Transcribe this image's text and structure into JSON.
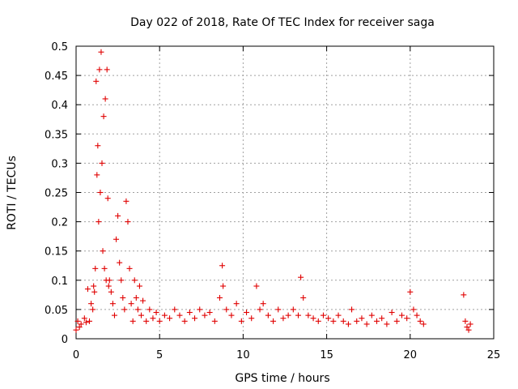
{
  "chart_data": {
    "type": "scatter",
    "title": "Day 022 of 2018, Rate Of TEC Index for receiver saga",
    "xlabel": "GPS time / hours",
    "ylabel": "ROTI / TECUs",
    "xlim": [
      0,
      25
    ],
    "ylim": [
      0,
      0.5
    ],
    "xticks": [
      0,
      5,
      10,
      15,
      20,
      25
    ],
    "yticks": [
      0,
      0.05,
      0.1,
      0.15,
      0.2,
      0.25,
      0.3,
      0.35,
      0.4,
      0.45,
      0.5
    ],
    "xtick_labels": [
      "0",
      "5",
      "10",
      "15",
      "20",
      "25"
    ],
    "ytick_labels": [
      "0",
      "0.05",
      "0.1",
      "0.15",
      "0.2",
      "0.25",
      "0.3",
      "0.35",
      "0.4",
      "0.45",
      "0.5"
    ],
    "grid": true,
    "marker": "+",
    "color": "#e00000",
    "series": [
      {
        "name": "ROTI",
        "x": [
          0.0,
          0.1,
          0.2,
          0.3,
          0.5,
          0.6,
          0.7,
          0.8,
          0.9,
          1.0,
          1.05,
          1.1,
          1.15,
          1.2,
          1.25,
          1.3,
          1.35,
          1.4,
          1.45,
          1.5,
          1.55,
          1.6,
          1.65,
          1.7,
          1.75,
          1.8,
          1.85,
          1.9,
          1.95,
          2.0,
          2.1,
          2.2,
          2.3,
          2.4,
          2.5,
          2.6,
          2.7,
          2.8,
          2.9,
          3.0,
          3.1,
          3.2,
          3.3,
          3.4,
          3.5,
          3.6,
          3.7,
          3.8,
          3.9,
          4.0,
          4.2,
          4.4,
          4.6,
          4.8,
          5.0,
          5.3,
          5.6,
          5.9,
          6.2,
          6.5,
          6.8,
          7.1,
          7.4,
          7.7,
          8.0,
          8.3,
          8.6,
          8.75,
          8.8,
          9.0,
          9.3,
          9.6,
          9.9,
          10.2,
          10.5,
          10.8,
          11.0,
          11.2,
          11.5,
          11.8,
          12.1,
          12.4,
          12.7,
          13.0,
          13.3,
          13.45,
          13.6,
          13.9,
          14.2,
          14.5,
          14.8,
          15.1,
          15.4,
          15.7,
          16.0,
          16.3,
          16.5,
          16.8,
          17.1,
          17.4,
          17.7,
          18.0,
          18.3,
          18.6,
          18.9,
          19.2,
          19.5,
          19.8,
          20.0,
          20.2,
          20.4,
          20.6,
          20.8,
          23.2,
          23.3,
          23.4,
          23.5,
          23.6
        ],
        "y": [
          0.015,
          0.03,
          0.02,
          0.025,
          0.035,
          0.028,
          0.085,
          0.03,
          0.06,
          0.05,
          0.09,
          0.08,
          0.12,
          0.44,
          0.28,
          0.33,
          0.2,
          0.46,
          0.25,
          0.49,
          0.3,
          0.15,
          0.38,
          0.12,
          0.41,
          0.1,
          0.46,
          0.24,
          0.09,
          0.1,
          0.08,
          0.06,
          0.04,
          0.17,
          0.21,
          0.13,
          0.1,
          0.07,
          0.05,
          0.235,
          0.2,
          0.12,
          0.06,
          0.03,
          0.1,
          0.07,
          0.05,
          0.09,
          0.04,
          0.065,
          0.03,
          0.05,
          0.035,
          0.045,
          0.03,
          0.04,
          0.035,
          0.05,
          0.04,
          0.03,
          0.045,
          0.035,
          0.05,
          0.04,
          0.045,
          0.03,
          0.07,
          0.125,
          0.09,
          0.05,
          0.04,
          0.06,
          0.03,
          0.045,
          0.035,
          0.09,
          0.05,
          0.06,
          0.04,
          0.03,
          0.05,
          0.035,
          0.04,
          0.05,
          0.04,
          0.105,
          0.07,
          0.04,
          0.035,
          0.03,
          0.04,
          0.035,
          0.03,
          0.04,
          0.03,
          0.025,
          0.05,
          0.03,
          0.035,
          0.025,
          0.04,
          0.03,
          0.035,
          0.025,
          0.045,
          0.03,
          0.04,
          0.035,
          0.08,
          0.05,
          0.04,
          0.03,
          0.025,
          0.075,
          0.03,
          0.02,
          0.015,
          0.025
        ]
      }
    ]
  }
}
